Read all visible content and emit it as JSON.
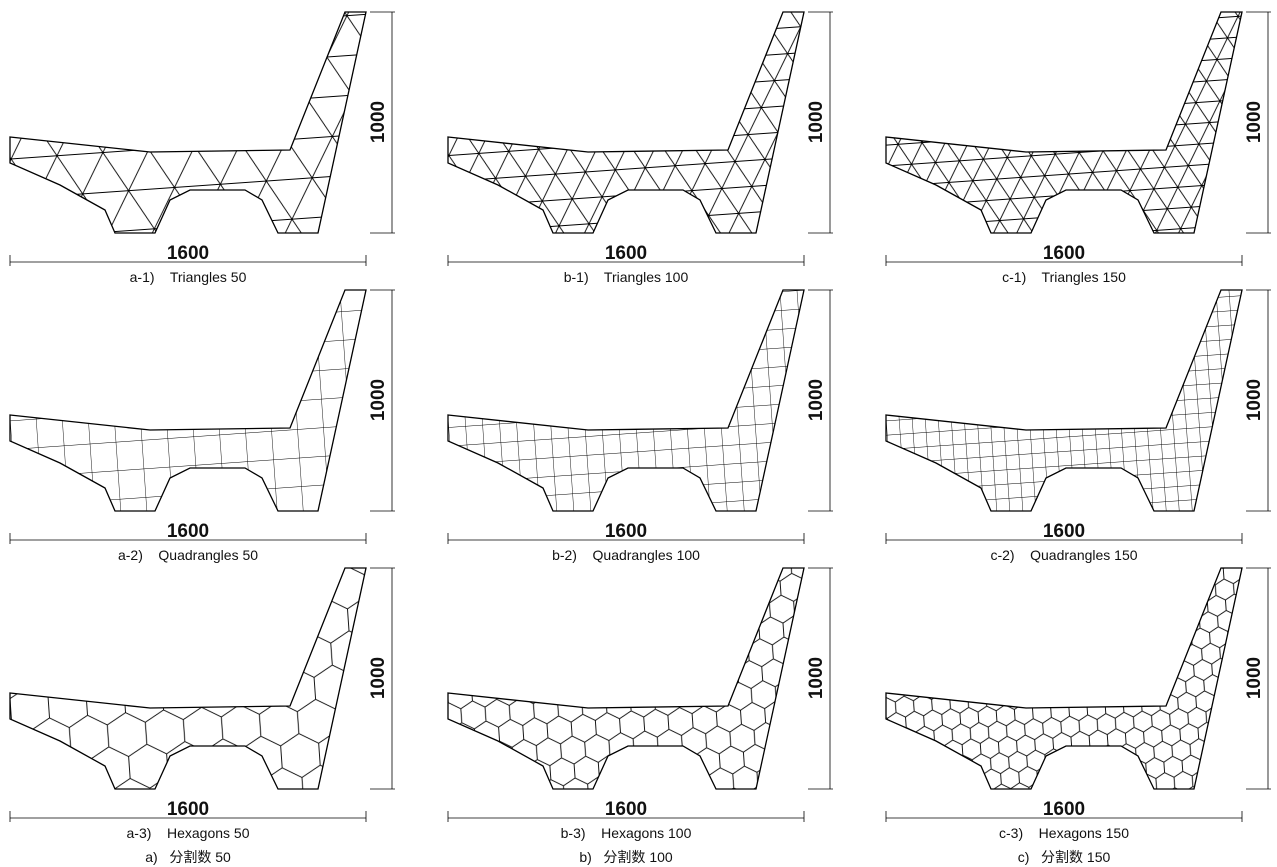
{
  "columns": [
    {
      "label": "a)   分割数 50",
      "panels": [
        {
          "caption": "a-1)    Triangles 50",
          "width": 1600,
          "height": 1000
        },
        {
          "caption": "a-2)    Quadrangles 50",
          "width": 1600,
          "height": 1000
        },
        {
          "caption": "a-3)    Hexagons 50",
          "width": 1600,
          "height": 1000
        }
      ]
    },
    {
      "label": "b)   分割数 100",
      "panels": [
        {
          "caption": "b-1)    Triangles 100",
          "width": 1600,
          "height": 1000
        },
        {
          "caption": "b-2)    Quadrangles 100",
          "width": 1600,
          "height": 1000
        },
        {
          "caption": "b-3)    Hexagons 100",
          "width": 1600,
          "height": 1000
        }
      ]
    },
    {
      "label": "c)   分割数 150",
      "panels": [
        {
          "caption": "c-1)    Triangles 150",
          "width": 1600,
          "height": 1000
        },
        {
          "caption": "c-2)    Quadrangles 150",
          "width": 1600,
          "height": 1000
        },
        {
          "caption": "c-3)    Hexagons 150",
          "width": 1600,
          "height": 1000
        }
      ]
    }
  ]
}
